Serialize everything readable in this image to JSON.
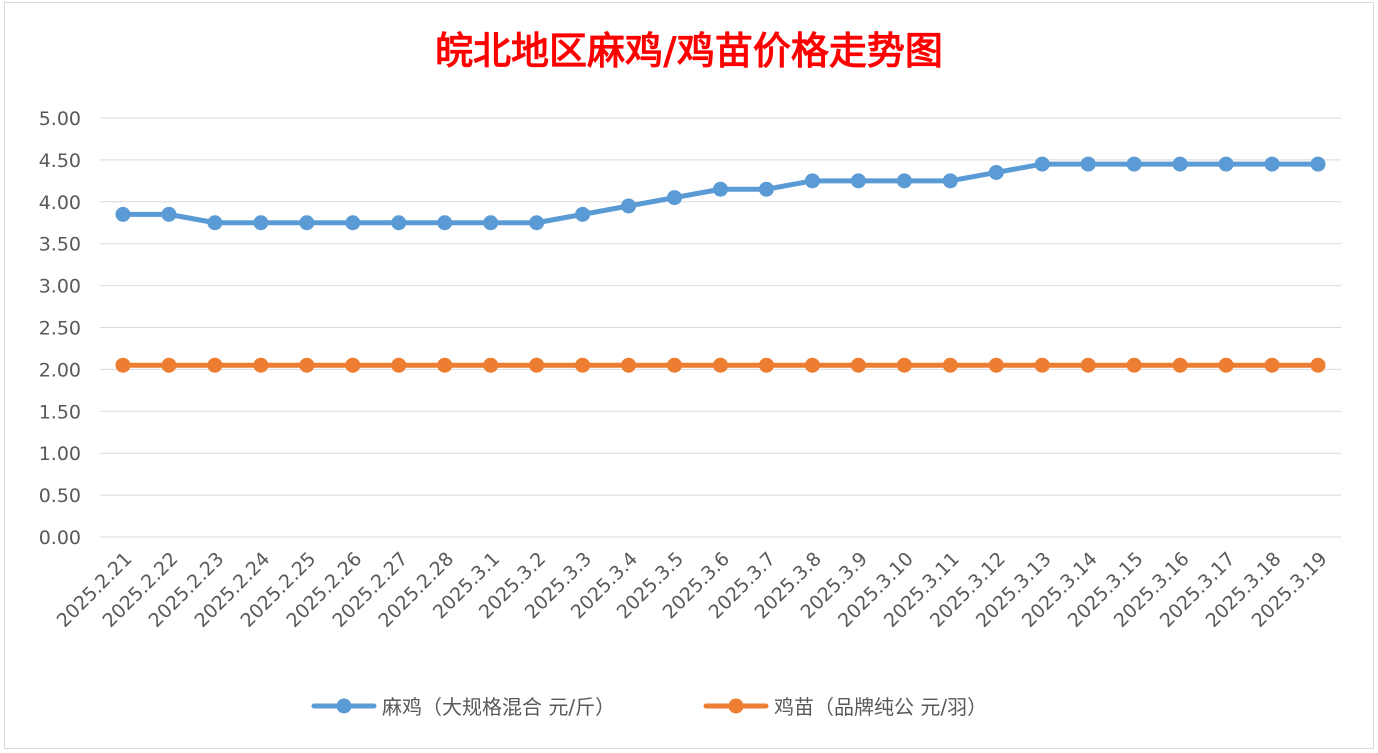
{
  "chart_data": {
    "type": "line",
    "title": "皖北地区麻鸡/鸡苗价格走势图",
    "xlabel": "",
    "ylabel": "",
    "ylim": [
      0,
      5
    ],
    "y_ticks": [
      "0.00",
      "0.50",
      "1.00",
      "1.50",
      "2.00",
      "2.50",
      "3.00",
      "3.50",
      "4.00",
      "4.50",
      "5.00"
    ],
    "grid": "horizontal",
    "legend_position": "bottom",
    "categories": [
      "2025.2.21",
      "2025.2.22",
      "2025.2.23",
      "2025.2.24",
      "2025.2.25",
      "2025.2.26",
      "2025.2.27",
      "2025.2.28",
      "2025.3.1",
      "2025.3.2",
      "2025.3.3",
      "2025.3.4",
      "2025.3.5",
      "2025.3.6",
      "2025.3.7",
      "2025.3.8",
      "2025.3.9",
      "2025.3.10",
      "2025.3.11",
      "2025.3.12",
      "2025.3.13",
      "2025.3.14",
      "2025.3.15",
      "2025.3.16",
      "2025.3.17",
      "2025.3.18",
      "2025.3.19"
    ],
    "series": [
      {
        "name": "麻鸡（大规格混合 元/斤）",
        "color": "#5b9bd5",
        "values": [
          3.85,
          3.85,
          3.75,
          3.75,
          3.75,
          3.75,
          3.75,
          3.75,
          3.75,
          3.75,
          3.85,
          3.95,
          4.05,
          4.15,
          4.15,
          4.25,
          4.25,
          4.25,
          4.25,
          4.35,
          4.45,
          4.45,
          4.45,
          4.45,
          4.45,
          4.45,
          4.45
        ]
      },
      {
        "name": "鸡苗（品牌纯公 元/羽）",
        "color": "#ed7d31",
        "values": [
          2.05,
          2.05,
          2.05,
          2.05,
          2.05,
          2.05,
          2.05,
          2.05,
          2.05,
          2.05,
          2.05,
          2.05,
          2.05,
          2.05,
          2.05,
          2.05,
          2.05,
          2.05,
          2.05,
          2.05,
          2.05,
          2.05,
          2.05,
          2.05,
          2.05,
          2.05,
          2.05
        ]
      }
    ]
  }
}
